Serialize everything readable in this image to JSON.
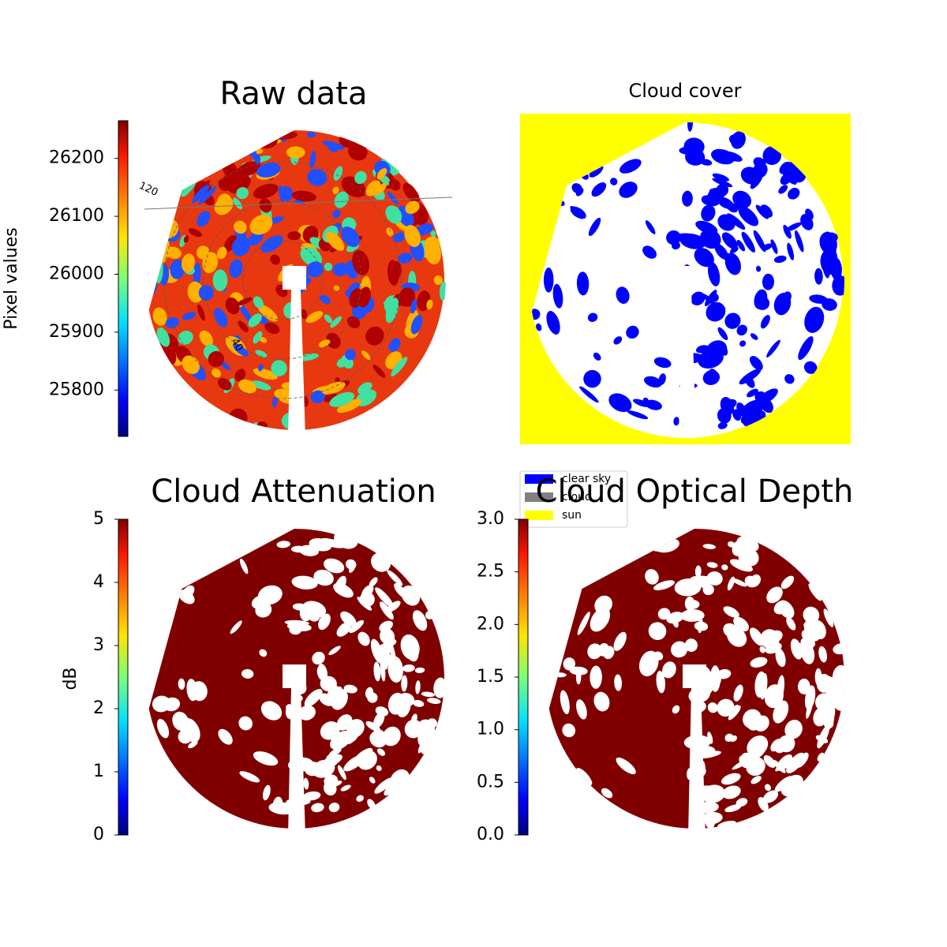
{
  "chart_data": [
    {
      "type": "image",
      "title": "Raw data",
      "colormap": "jet",
      "background": "#e8380f",
      "colorbar": {
        "label": "Pixel values",
        "lim": [
          25720,
          26265
        ],
        "ticks": [
          25800,
          25900,
          26000,
          26100,
          26200
        ]
      },
      "annotations": [
        "120",
        "40"
      ],
      "polar_grid": true
    },
    {
      "type": "image",
      "title": "Cloud cover",
      "background": "#ffff00",
      "legend": [
        {
          "name": "clear sky",
          "color": "#0000ff"
        },
        {
          "name": "cloud",
          "color": "#808080"
        },
        {
          "name": "sun",
          "color": "#ffff00"
        }
      ]
    },
    {
      "type": "image",
      "title": "Cloud Attenuation",
      "colormap": "jet",
      "background": "#800000",
      "colorbar": {
        "label": "dB",
        "lim": [
          0,
          5
        ],
        "ticks": [
          0,
          1,
          2,
          3,
          4,
          5
        ]
      }
    },
    {
      "type": "image",
      "title": "Cloud Optical Depth",
      "colormap": "jet",
      "background": "#800000",
      "colorbar": {
        "lim": [
          0,
          3
        ],
        "ticks": [
          {
            "value": 0,
            "label": "0.0"
          },
          {
            "value": 0.5,
            "label": "0.5"
          },
          {
            "value": 1,
            "label": "1.0"
          },
          {
            "value": 1.5,
            "label": "1.5"
          },
          {
            "value": 2,
            "label": "2.0"
          },
          {
            "value": 2.5,
            "label": "2.5"
          },
          {
            "value": 3,
            "label": "3.0"
          }
        ]
      }
    }
  ]
}
